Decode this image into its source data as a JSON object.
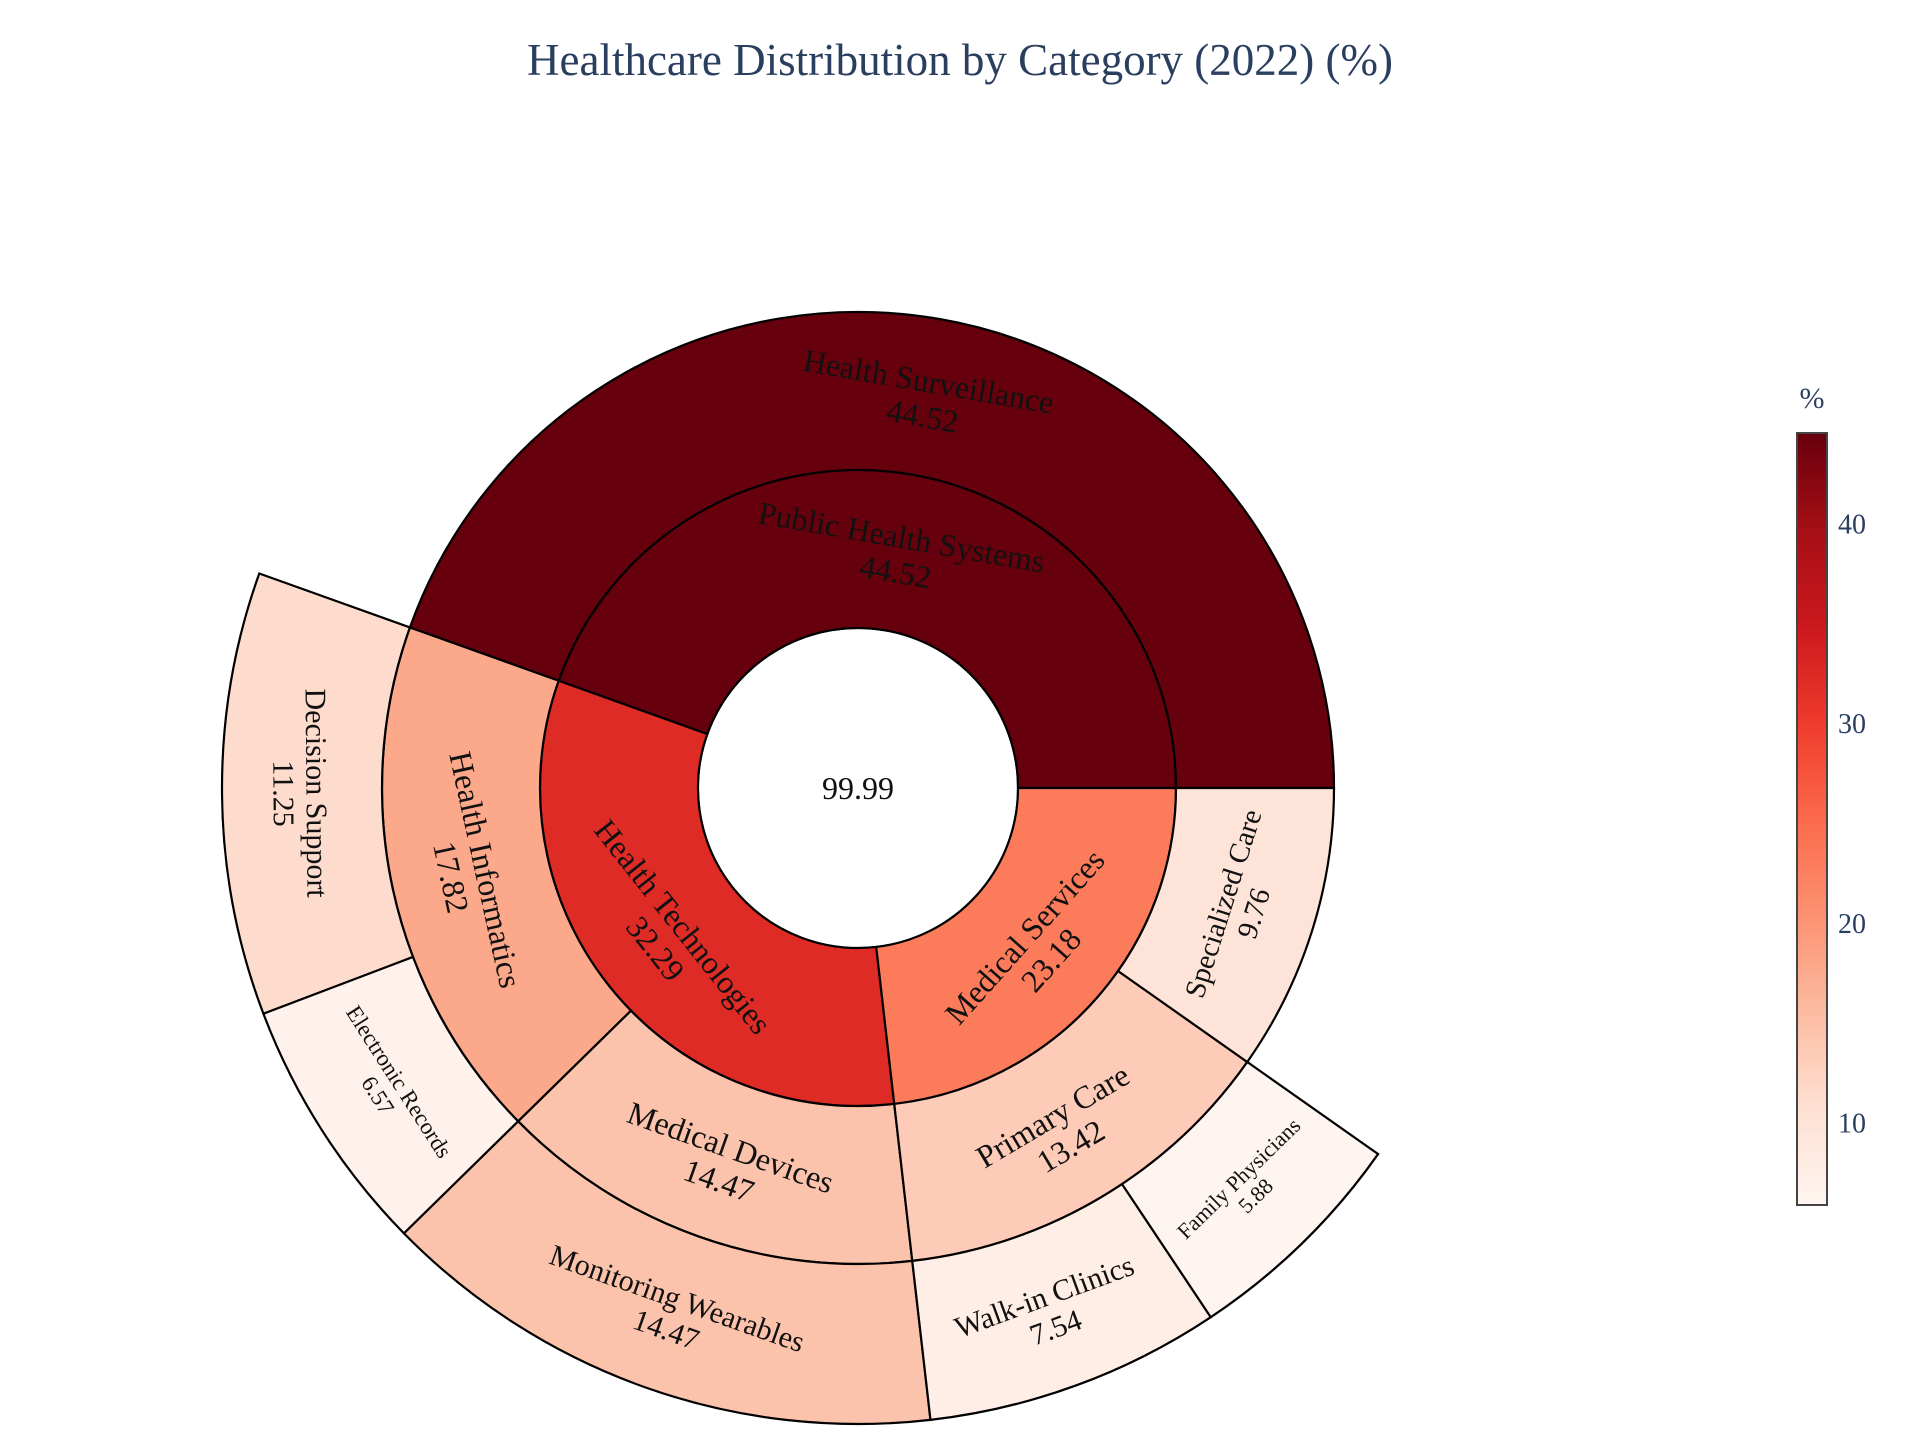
{
  "chart_data": {
    "type": "sunburst",
    "title": "Healthcare Distribution by Category (2022) (%)",
    "root_value": "99.99",
    "rotation_note": "counterclockwise from 3 o'clock",
    "nodes": [
      {
        "id": "public",
        "label": "Public Health Systems",
        "value": 44.52,
        "level": 1,
        "parent": null,
        "value_text": "44.52"
      },
      {
        "id": "tech",
        "label": "Health Technologies",
        "value": 32.29,
        "level": 1,
        "parent": null,
        "value_text": "32.29"
      },
      {
        "id": "med",
        "label": "Medical Services",
        "value": 23.18,
        "level": 1,
        "parent": null,
        "value_text": "23.18"
      },
      {
        "id": "surv",
        "label": "Health Surveillance",
        "value": 44.52,
        "level": 2,
        "parent": "public",
        "value_text": "44.52"
      },
      {
        "id": "infor",
        "label": "Health Informatics",
        "value": 17.82,
        "level": 2,
        "parent": "tech",
        "value_text": "17.82"
      },
      {
        "id": "devices",
        "label": "Medical Devices",
        "value": 14.47,
        "level": 2,
        "parent": "tech",
        "value_text": "14.47"
      },
      {
        "id": "primary",
        "label": "Primary Care",
        "value": 13.42,
        "level": 2,
        "parent": "med",
        "value_text": "13.42"
      },
      {
        "id": "special",
        "label": "Specialized Care",
        "value": 9.76,
        "level": 2,
        "parent": "med",
        "value_text": "9.76"
      },
      {
        "id": "decision",
        "label": "Decision Support",
        "value": 11.25,
        "level": 3,
        "parent": "infor",
        "value_text": "11.25"
      },
      {
        "id": "records",
        "label": "Electronic Records",
        "value": 6.57,
        "level": 3,
        "parent": "infor",
        "value_text": "6.57"
      },
      {
        "id": "wearables",
        "label": "Monitoring Wearables",
        "value": 14.47,
        "level": 3,
        "parent": "devices",
        "value_text": "14.47"
      },
      {
        "id": "walkin",
        "label": "Walk-in Clinics",
        "value": 7.54,
        "level": 3,
        "parent": "primary",
        "value_text": "7.54"
      },
      {
        "id": "family",
        "label": "Family Physicians",
        "value": 5.88,
        "level": 3,
        "parent": "primary",
        "value_text": "5.88"
      }
    ],
    "colorscale": {
      "title": "%",
      "min": 5.88,
      "max": 44.52,
      "ticks": [
        10,
        20,
        30,
        40
      ],
      "stops": [
        "#fff5f0",
        "#fee0d2",
        "#fcbba1",
        "#fc9272",
        "#fb6a4a",
        "#ef3b2c",
        "#cb181d",
        "#a50f15",
        "#67000d"
      ]
    },
    "border_color": "#000000",
    "legend_position": "right"
  }
}
